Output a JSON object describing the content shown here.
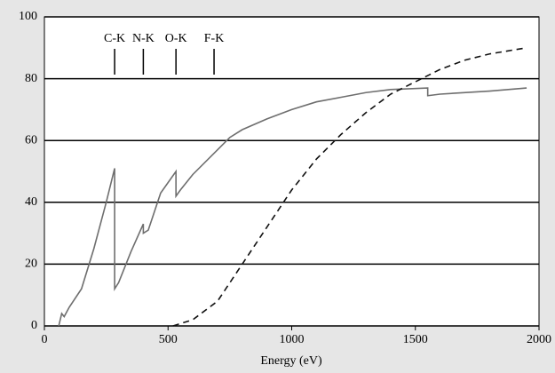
{
  "chart_data": {
    "type": "line",
    "x_label": "Energy (eV)",
    "xlim": [
      0,
      2000
    ],
    "xticks": [
      0,
      500,
      1000,
      1500,
      2000
    ],
    "ylim": [
      0,
      100
    ],
    "yticks": [
      0,
      20,
      40,
      60,
      80,
      100
    ],
    "grid": true,
    "annotations": [
      {
        "text": "C-K",
        "x": 284
      },
      {
        "text": "N-K",
        "x": 400
      },
      {
        "text": "O-K",
        "x": 532
      },
      {
        "text": "F-K",
        "x": 686
      }
    ],
    "series": [
      {
        "color": "#6e6e6e",
        "dashed": false,
        "x": [
          58,
          70,
          80,
          100,
          150,
          200,
          250,
          284,
          284,
          300,
          350,
          400,
          400,
          420,
          470,
          532,
          532,
          550,
          600,
          700,
          750,
          800,
          900,
          1000,
          1100,
          1200,
          1300,
          1400,
          1550,
          1550,
          1600,
          1800,
          1950
        ],
        "values": [
          0,
          4,
          3,
          6,
          12,
          25,
          40,
          51,
          12,
          14,
          24,
          33,
          30,
          31,
          43,
          50,
          42,
          44,
          49,
          57,
          61,
          63.5,
          67,
          70,
          72.5,
          74,
          75.5,
          76.5,
          77,
          74.5,
          75,
          76,
          77
        ]
      },
      {
        "color": "#111111",
        "dashed": true,
        "x": [
          520,
          600,
          700,
          800,
          900,
          1000,
          1100,
          1200,
          1300,
          1400,
          1500,
          1600,
          1700,
          1800,
          1950
        ],
        "values": [
          0,
          2,
          8,
          20,
          32,
          44,
          54,
          62,
          69,
          75,
          79,
          83,
          86,
          88,
          90
        ]
      }
    ]
  }
}
